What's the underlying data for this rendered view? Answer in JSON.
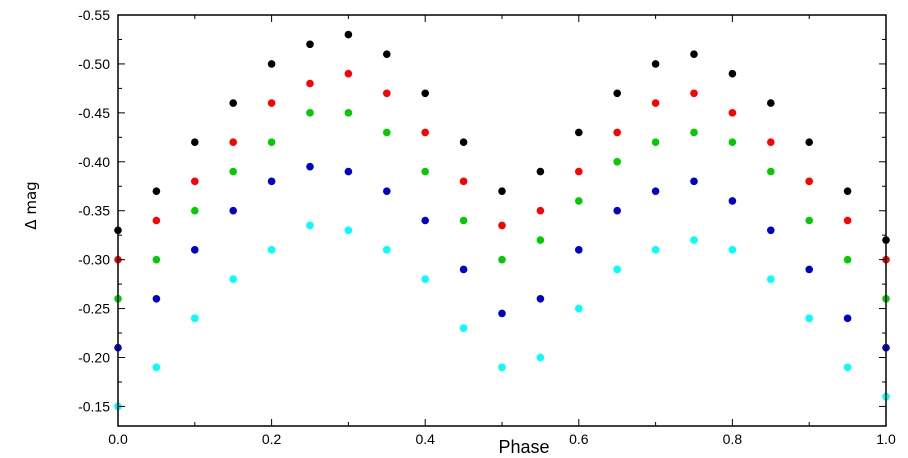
{
  "chart_data": {
    "type": "scatter",
    "title": "",
    "xlabel": "Phase",
    "ylabel": "Δ mag",
    "xlim": [
      0.0,
      1.0
    ],
    "ylim": [
      -0.55,
      -0.13
    ],
    "y_inverted": true,
    "x_ticks": [
      0.0,
      0.2,
      0.4,
      0.6,
      0.8,
      1.0
    ],
    "x_tick_labels": [
      "0.0",
      "0.2",
      "0.4",
      "0.6",
      "0.8",
      "1.0"
    ],
    "y_ticks": [
      -0.55,
      -0.5,
      -0.45,
      -0.4,
      -0.35,
      -0.3,
      -0.25,
      -0.2,
      -0.15
    ],
    "y_tick_labels": [
      "-0.55",
      "-0.50",
      "-0.45",
      "-0.40",
      "-0.35",
      "-0.30",
      "-0.25",
      "-0.20",
      "-0.15"
    ],
    "grid": false,
    "legend": "none",
    "series": [
      {
        "color": "#000000",
        "x": [
          0.0,
          0.05,
          0.1,
          0.15,
          0.2,
          0.25,
          0.3,
          0.35,
          0.4,
          0.45,
          0.5,
          0.55,
          0.6,
          0.65,
          0.7,
          0.75,
          0.8,
          0.85,
          0.9,
          0.95,
          1.0
        ],
        "y": [
          -0.33,
          -0.37,
          -0.42,
          -0.46,
          -0.5,
          -0.52,
          -0.53,
          -0.51,
          -0.47,
          -0.42,
          -0.37,
          -0.39,
          -0.43,
          -0.47,
          -0.5,
          -0.51,
          -0.49,
          -0.46,
          -0.42,
          -0.37,
          -0.32
        ]
      },
      {
        "color": "#ff0000",
        "x": [
          0.0,
          0.05,
          0.1,
          0.15,
          0.2,
          0.25,
          0.3,
          0.35,
          0.4,
          0.45,
          0.5,
          0.55,
          0.6,
          0.65,
          0.7,
          0.75,
          0.8,
          0.85,
          0.9,
          0.95,
          1.0
        ],
        "y": [
          -0.3,
          -0.34,
          -0.38,
          -0.42,
          -0.46,
          -0.48,
          -0.49,
          -0.47,
          -0.43,
          -0.38,
          -0.335,
          -0.35,
          -0.39,
          -0.43,
          -0.46,
          -0.47,
          -0.45,
          -0.42,
          -0.38,
          -0.34,
          -0.3
        ]
      },
      {
        "color": "#00cc00",
        "x": [
          0.0,
          0.05,
          0.1,
          0.15,
          0.2,
          0.25,
          0.3,
          0.35,
          0.4,
          0.45,
          0.5,
          0.55,
          0.6,
          0.65,
          0.7,
          0.75,
          0.8,
          0.85,
          0.9,
          0.95,
          1.0
        ],
        "y": [
          -0.26,
          -0.3,
          -0.35,
          -0.39,
          -0.42,
          -0.45,
          -0.45,
          -0.43,
          -0.39,
          -0.34,
          -0.3,
          -0.32,
          -0.36,
          -0.4,
          -0.42,
          -0.43,
          -0.42,
          -0.39,
          -0.34,
          -0.3,
          -0.26
        ]
      },
      {
        "color": "#0000cc",
        "x": [
          0.0,
          0.05,
          0.1,
          0.15,
          0.2,
          0.25,
          0.3,
          0.35,
          0.4,
          0.45,
          0.5,
          0.55,
          0.6,
          0.65,
          0.7,
          0.75,
          0.8,
          0.85,
          0.9,
          0.95,
          1.0
        ],
        "y": [
          -0.21,
          -0.26,
          -0.31,
          -0.35,
          -0.38,
          -0.395,
          -0.39,
          -0.37,
          -0.34,
          -0.29,
          -0.245,
          -0.26,
          -0.31,
          -0.35,
          -0.37,
          -0.38,
          -0.36,
          -0.33,
          -0.29,
          -0.24,
          -0.21
        ]
      },
      {
        "color": "#00ffff",
        "x": [
          0.0,
          0.05,
          0.1,
          0.15,
          0.2,
          0.25,
          0.3,
          0.35,
          0.4,
          0.45,
          0.5,
          0.55,
          0.6,
          0.65,
          0.7,
          0.75,
          0.8,
          0.85,
          0.9,
          0.95,
          1.0
        ],
        "y": [
          -0.15,
          -0.19,
          -0.24,
          -0.28,
          -0.31,
          -0.335,
          -0.33,
          -0.31,
          -0.28,
          -0.23,
          -0.19,
          -0.2,
          -0.25,
          -0.29,
          -0.31,
          -0.32,
          -0.31,
          -0.28,
          -0.24,
          -0.19,
          -0.16
        ]
      }
    ]
  }
}
